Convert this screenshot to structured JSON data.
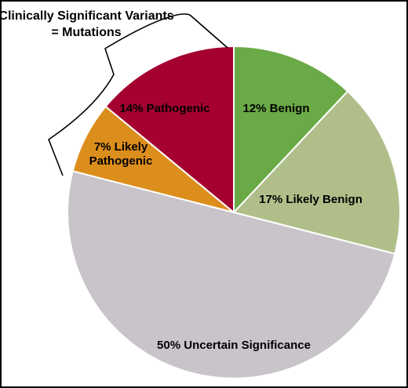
{
  "chart_data": {
    "type": "pie",
    "slices": [
      {
        "label": "12% Benign",
        "lines": [
          "12% Benign"
        ],
        "value": 12,
        "color": "#6aaa46"
      },
      {
        "label": "17% Likely Benign",
        "lines": [
          "17% Likely Benign"
        ],
        "value": 17,
        "color": "#b0bf8a"
      },
      {
        "label": "50% Uncertain Significance",
        "lines": [
          "50% Uncertain Significance"
        ],
        "value": 50,
        "color": "#c8c4c9"
      },
      {
        "label": "7% Likely Pathogenic",
        "lines": [
          "7% Likely",
          "Pathogenic"
        ],
        "value": 7,
        "color": "#dc8e1c"
      },
      {
        "label": "14% Pathogenic",
        "lines": [
          "14% Pathogenic"
        ],
        "value": 14,
        "color": "#a40030"
      }
    ],
    "annotation": {
      "lines": [
        "Clinically Significant Variants",
        "= Mutations"
      ]
    }
  }
}
